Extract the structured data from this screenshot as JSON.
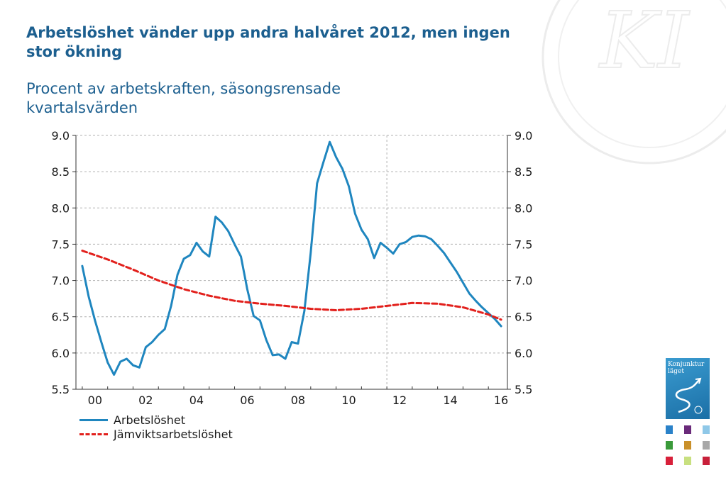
{
  "title": "Arbetslöshet vänder upp andra halvåret 2012, men ingen stor ökning",
  "subtitle": "Procent av arbetskraften, säsongsrensade kvartalsvärden",
  "cover": {
    "title_line1": "Konjunktur",
    "title_line2": "läget"
  },
  "colors": {
    "title": "#1c5f8f",
    "series_actual": "#1f86bf",
    "series_equilibrium": "#e2201c",
    "grid": "#b0b0b0"
  },
  "thumbnail_colors": [
    "#2a82c9",
    "#6a2a7a",
    "#8fc8e8",
    "#3a9a3a",
    "#c9902a",
    "#a8a8a8",
    "#d8203a",
    "#c8e080",
    "#c8203a"
  ],
  "chart_data": {
    "type": "line",
    "title": "Arbetslöshet vänder upp andra halvåret 2012, men ingen stor ökning",
    "subtitle": "Procent av arbetskraften, säsongsrensade kvartalsvärden",
    "xlabel": "",
    "ylabel": "",
    "xlim": [
      1999.75,
      2016.75
    ],
    "ylim": [
      5.5,
      9.0
    ],
    "yticks": [
      "5.5",
      "6.0",
      "6.5",
      "7.0",
      "7.5",
      "8.0",
      "8.5",
      "9.0"
    ],
    "xticks": [
      {
        "label": "00",
        "x": 2000.5
      },
      {
        "label": "02",
        "x": 2002.5
      },
      {
        "label": "04",
        "x": 2004.5
      },
      {
        "label": "06",
        "x": 2006.5
      },
      {
        "label": "08",
        "x": 2008.5
      },
      {
        "label": "10",
        "x": 2010.5
      },
      {
        "label": "12",
        "x": 2012.5
      },
      {
        "label": "14",
        "x": 2014.5
      },
      {
        "label": "16",
        "x": 2016.5
      }
    ],
    "forecast_start": 2012.0,
    "grid": true,
    "legend": "bottom-left",
    "series": [
      {
        "name": "Arbetslöshet",
        "style": "solid",
        "x": [
          2000.0,
          2000.25,
          2000.5,
          2000.75,
          2001.0,
          2001.25,
          2001.5,
          2001.75,
          2002.0,
          2002.25,
          2002.5,
          2002.75,
          2003.0,
          2003.25,
          2003.5,
          2003.75,
          2004.0,
          2004.25,
          2004.5,
          2004.75,
          2005.0,
          2005.25,
          2005.5,
          2005.75,
          2006.0,
          2006.25,
          2006.5,
          2006.75,
          2007.0,
          2007.25,
          2007.5,
          2007.75,
          2008.0,
          2008.25,
          2008.5,
          2008.75,
          2009.0,
          2009.25,
          2009.5,
          2009.75,
          2010.0,
          2010.25,
          2010.5,
          2010.75,
          2011.0,
          2011.25,
          2011.5,
          2011.75,
          2012.0,
          2012.25,
          2012.5,
          2012.75,
          2013.0,
          2013.25,
          2013.5,
          2013.75,
          2014.0,
          2014.25,
          2014.5,
          2014.75,
          2015.0,
          2015.25,
          2015.5,
          2015.75,
          2016.0,
          2016.25,
          2016.5
        ],
        "values": [
          7.2,
          6.78,
          6.45,
          6.15,
          5.87,
          5.7,
          5.88,
          5.92,
          5.83,
          5.8,
          6.08,
          6.15,
          6.25,
          6.33,
          6.65,
          7.08,
          7.3,
          7.35,
          7.52,
          7.4,
          7.33,
          7.88,
          7.8,
          7.68,
          7.5,
          7.33,
          6.88,
          6.51,
          6.45,
          6.18,
          5.97,
          5.98,
          5.92,
          6.15,
          6.13,
          6.58,
          7.38,
          8.34,
          8.63,
          8.91,
          8.7,
          8.54,
          8.3,
          7.92,
          7.7,
          7.57,
          7.31,
          7.52,
          7.45,
          7.37,
          7.5,
          7.53,
          7.6,
          7.62,
          7.61,
          7.57,
          7.48,
          7.38,
          7.25,
          7.12,
          6.97,
          6.82,
          6.72,
          6.63,
          6.55,
          6.47,
          6.37
        ]
      },
      {
        "name": "Jämviktsarbetslöshet",
        "style": "dashed",
        "x": [
          2000.0,
          2001.0,
          2002.0,
          2003.0,
          2004.0,
          2005.0,
          2006.0,
          2007.0,
          2008.0,
          2009.0,
          2010.0,
          2011.0,
          2012.0,
          2013.0,
          2014.0,
          2015.0,
          2016.0,
          2016.5
        ],
        "values": [
          7.41,
          7.29,
          7.15,
          7.0,
          6.88,
          6.79,
          6.72,
          6.68,
          6.65,
          6.61,
          6.59,
          6.61,
          6.65,
          6.69,
          6.68,
          6.63,
          6.53,
          6.46
        ]
      }
    ]
  }
}
